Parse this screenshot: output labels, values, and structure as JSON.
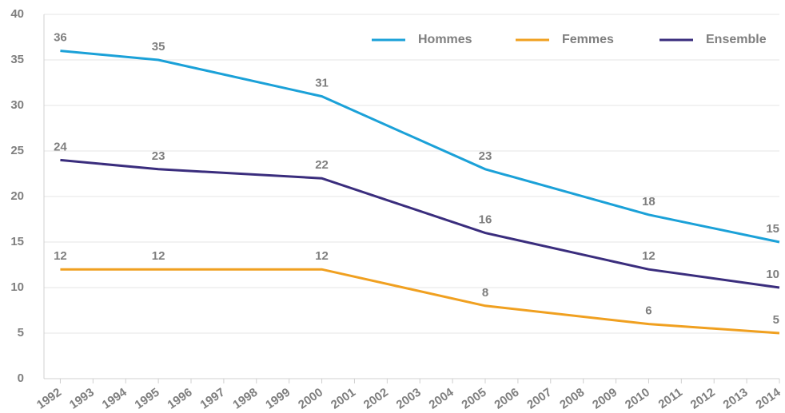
{
  "chart_data": {
    "type": "line",
    "x": [
      1992,
      1995,
      2000,
      2005,
      2010,
      2014
    ],
    "series": [
      {
        "name": "Hommes",
        "color": "#1ba1d8",
        "values": [
          36,
          35,
          31,
          23,
          18,
          15
        ]
      },
      {
        "name": "Femmes",
        "color": "#f0a020",
        "values": [
          12,
          12,
          12,
          8,
          6,
          5
        ]
      },
      {
        "name": "Ensemble",
        "color": "#3a2d7d",
        "values": [
          24,
          23,
          22,
          16,
          12,
          10
        ]
      }
    ],
    "xlim": [
      1991.5,
      2014
    ],
    "xticks": [
      1992,
      1993,
      1994,
      1995,
      1996,
      1997,
      1998,
      1999,
      2000,
      2001,
      2002,
      2003,
      2004,
      2005,
      2006,
      2007,
      2008,
      2009,
      2010,
      2011,
      2012,
      2013,
      2014
    ],
    "ylim": [
      0,
      40
    ],
    "yticks": [
      0,
      5,
      10,
      15,
      20,
      25,
      30,
      35,
      40
    ],
    "grid": true,
    "legend": "top-right"
  }
}
